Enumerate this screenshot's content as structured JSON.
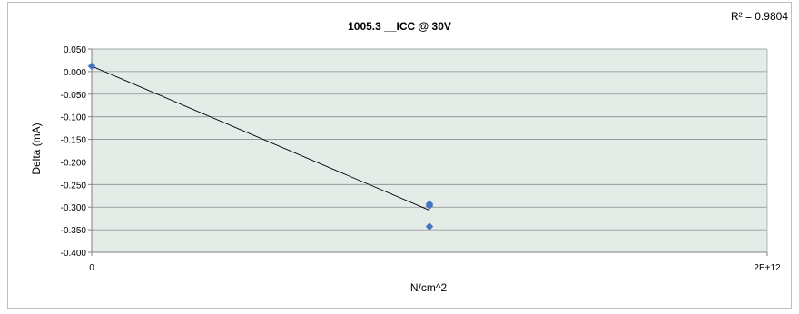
{
  "chart_data": {
    "type": "scatter",
    "title": "1005.3 __ICC @ 30V",
    "xlabel": "N/cm^2",
    "ylabel": "Delta (mA)",
    "r_squared_label": "R² = 0.9804",
    "xlim": [
      0,
      2000000000000
    ],
    "ylim": [
      -0.4,
      0.05
    ],
    "x_ticks": [
      {
        "value": 0,
        "label": "0"
      },
      {
        "value": 2000000000000,
        "label": "2E+12"
      }
    ],
    "y_ticks": [
      {
        "value": 0.05,
        "label": "0.050"
      },
      {
        "value": 0.0,
        "label": "0.000"
      },
      {
        "value": -0.05,
        "label": "-0.050"
      },
      {
        "value": -0.1,
        "label": "-0.100"
      },
      {
        "value": -0.15,
        "label": "-0.150"
      },
      {
        "value": -0.2,
        "label": "-0.200"
      },
      {
        "value": -0.25,
        "label": "-0.250"
      },
      {
        "value": -0.3,
        "label": "-0.300"
      },
      {
        "value": -0.35,
        "label": "-0.350"
      },
      {
        "value": -0.4,
        "label": "-0.400"
      }
    ],
    "series": [
      {
        "points": [
          {
            "x": 0,
            "y": 0.012
          },
          {
            "x": 1000000000000,
            "y": -0.293
          },
          {
            "x": 1000000000000,
            "y": -0.297
          },
          {
            "x": 1000000000000,
            "y": -0.343
          }
        ],
        "color": "#4472c4",
        "marker": "diamond"
      }
    ],
    "trendline": {
      "type": "linear",
      "from": {
        "x": 0,
        "y": 0.012
      },
      "to": {
        "x": 1000000000000,
        "y": -0.307
      },
      "color": "#000000"
    },
    "grid": true,
    "plot_background": "#e4ece8",
    "gridline_color": "#8c8c8c"
  }
}
